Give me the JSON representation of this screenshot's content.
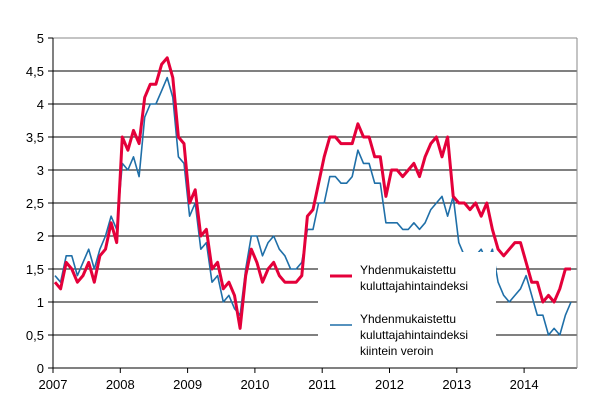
{
  "chart_data": {
    "type": "line",
    "title": "",
    "xlabel": "",
    "ylabel": "",
    "x_start": "2007-01",
    "x_end": "2014-09",
    "x_frequency": "monthly",
    "x_ticks": [
      "2007",
      "2008",
      "2009",
      "2010",
      "2011",
      "2012",
      "2013",
      "2014"
    ],
    "y_ticks": [
      "0",
      "0,5",
      "1",
      "1,5",
      "2",
      "2,5",
      "3",
      "3,5",
      "4",
      "4,5",
      "5"
    ],
    "ylim": [
      0,
      5
    ],
    "grid": true,
    "legend_placement": "bottom-center",
    "series": [
      {
        "name": "Yhdenmukaistettu kuluttajahintaindeksi",
        "name_lines": [
          "Yhdenmukaistettu",
          "kuluttajahintaindeksi"
        ],
        "color": "#e4003a",
        "values": [
          1.3,
          1.2,
          1.6,
          1.5,
          1.3,
          1.4,
          1.6,
          1.3,
          1.7,
          1.8,
          2.2,
          1.9,
          3.5,
          3.3,
          3.6,
          3.4,
          4.1,
          4.3,
          4.3,
          4.6,
          4.7,
          4.4,
          3.5,
          3.4,
          2.5,
          2.7,
          2.0,
          2.1,
          1.5,
          1.6,
          1.2,
          1.3,
          1.1,
          0.6,
          1.4,
          1.8,
          1.6,
          1.3,
          1.5,
          1.6,
          1.4,
          1.3,
          1.3,
          1.3,
          1.4,
          2.3,
          2.4,
          2.8,
          3.2,
          3.5,
          3.5,
          3.4,
          3.4,
          3.4,
          3.7,
          3.5,
          3.5,
          3.2,
          3.2,
          2.6,
          3.0,
          3.0,
          2.9,
          3.0,
          3.1,
          2.9,
          3.2,
          3.4,
          3.5,
          3.2,
          3.5,
          2.6,
          2.5,
          2.5,
          2.4,
          2.5,
          2.3,
          2.5,
          2.1,
          1.8,
          1.7,
          1.8,
          1.9,
          1.9,
          1.6,
          1.3,
          1.3,
          1.0,
          1.1,
          1.0,
          1.2,
          1.5,
          1.5
        ]
      },
      {
        "name": "Yhdenmukaistettu kuluttajahintaindeksi kiintein veroin",
        "name_lines": [
          "Yhdenmukaistettu",
          "kuluttajahintaindeksi",
          "kiintein veroin"
        ],
        "color": "#1f6fa8",
        "values": [
          1.4,
          1.3,
          1.7,
          1.7,
          1.4,
          1.6,
          1.8,
          1.5,
          1.8,
          2.0,
          2.3,
          2.1,
          3.1,
          3.0,
          3.2,
          2.9,
          3.8,
          4.0,
          4.0,
          4.2,
          4.4,
          4.1,
          3.2,
          3.1,
          2.3,
          2.5,
          1.8,
          1.9,
          1.3,
          1.4,
          1.0,
          1.1,
          0.9,
          0.8,
          1.5,
          2.0,
          2.0,
          1.7,
          1.9,
          2.0,
          1.8,
          1.7,
          1.5,
          1.5,
          1.6,
          2.1,
          2.1,
          2.5,
          2.5,
          2.9,
          2.9,
          2.8,
          2.8,
          2.9,
          3.3,
          3.1,
          3.1,
          2.8,
          2.8,
          2.2,
          2.2,
          2.2,
          2.1,
          2.1,
          2.2,
          2.1,
          2.2,
          2.4,
          2.5,
          2.6,
          2.3,
          2.6,
          1.9,
          1.7,
          1.7,
          1.7,
          1.8,
          1.6,
          1.8,
          1.3,
          1.1,
          1.0,
          1.1,
          1.2,
          1.4,
          1.1,
          0.8,
          0.8,
          0.5,
          0.6,
          0.5,
          0.8,
          1.0
        ]
      }
    ]
  }
}
